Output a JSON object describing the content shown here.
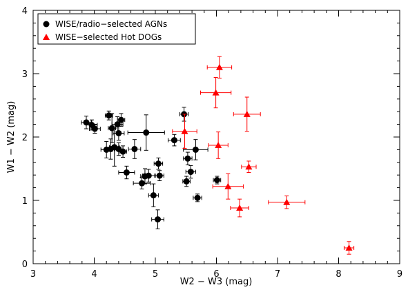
{
  "chart_data": {
    "type": "scatter",
    "title": "",
    "xlabel": "W2 − W3 (mag)",
    "ylabel": "W1 − W2 (mag)",
    "xlim": [
      3,
      9
    ],
    "ylim": [
      0,
      4
    ],
    "xticks": [
      "3",
      "4",
      "5",
      "6",
      "7",
      "8",
      "9"
    ],
    "yticks": [
      "0",
      "1",
      "2",
      "3",
      "4"
    ],
    "legend_position": "top-left",
    "series": [
      {
        "name": "WISE/radio−selected AGNs",
        "marker": "circle",
        "color": "#000000",
        "points": [
          {
            "x": 3.87,
            "y": 2.23,
            "xerr": 0.08,
            "yerr": 0.1
          },
          {
            "x": 3.96,
            "y": 2.19,
            "xerr": 0.09,
            "yerr": 0.08
          },
          {
            "x": 4.01,
            "y": 2.13,
            "xerr": 0.09,
            "yerr": 0.07
          },
          {
            "x": 4.24,
            "y": 2.34,
            "xerr": 0.06,
            "yerr": 0.07
          },
          {
            "x": 4.29,
            "y": 2.14,
            "xerr": 0.06,
            "yerr": 0.23
          },
          {
            "x": 4.38,
            "y": 2.2,
            "xerr": 0.09,
            "yerr": 0.12
          },
          {
            "x": 4.4,
            "y": 2.06,
            "xerr": 0.09,
            "yerr": 0.11
          },
          {
            "x": 4.44,
            "y": 2.27,
            "xerr": 0.06,
            "yerr": 0.1
          },
          {
            "x": 4.2,
            "y": 1.8,
            "xerr": 0.09,
            "yerr": 0.13
          },
          {
            "x": 4.27,
            "y": 1.81,
            "xerr": 0.07,
            "yerr": 0.16
          },
          {
            "x": 4.33,
            "y": 1.84,
            "xerr": 0.08,
            "yerr": 0.3
          },
          {
            "x": 4.4,
            "y": 1.81,
            "xerr": 0.07,
            "yerr": 0.1
          },
          {
            "x": 4.47,
            "y": 1.77,
            "xerr": 0.06,
            "yerr": 0.09
          },
          {
            "x": 4.66,
            "y": 1.81,
            "xerr": 0.1,
            "yerr": 0.15
          },
          {
            "x": 4.85,
            "y": 2.07,
            "xerr": 0.3,
            "yerr": 0.28
          },
          {
            "x": 4.53,
            "y": 1.44,
            "xerr": 0.13,
            "yerr": 0.1
          },
          {
            "x": 4.78,
            "y": 1.27,
            "xerr": 0.14,
            "yerr": 0.09
          },
          {
            "x": 4.83,
            "y": 1.38,
            "xerr": 0.07,
            "yerr": 0.12
          },
          {
            "x": 4.89,
            "y": 1.39,
            "xerr": 0.1,
            "yerr": 0.1
          },
          {
            "x": 4.97,
            "y": 1.08,
            "xerr": 0.08,
            "yerr": 0.18
          },
          {
            "x": 5.05,
            "y": 1.58,
            "xerr": 0.07,
            "yerr": 0.09
          },
          {
            "x": 5.07,
            "y": 1.39,
            "xerr": 0.07,
            "yerr": 0.08
          },
          {
            "x": 5.04,
            "y": 0.7,
            "xerr": 0.1,
            "yerr": 0.15
          },
          {
            "x": 5.31,
            "y": 1.95,
            "xerr": 0.1,
            "yerr": 0.09
          },
          {
            "x": 5.47,
            "y": 2.36,
            "xerr": 0.07,
            "yerr": 0.11
          },
          {
            "x": 5.51,
            "y": 1.3,
            "xerr": 0.06,
            "yerr": 0.08
          },
          {
            "x": 5.53,
            "y": 1.66,
            "xerr": 0.07,
            "yerr": 0.1
          },
          {
            "x": 5.58,
            "y": 1.45,
            "xerr": 0.08,
            "yerr": 0.1
          },
          {
            "x": 5.66,
            "y": 1.8,
            "xerr": 0.2,
            "yerr": 0.16
          },
          {
            "x": 5.69,
            "y": 1.04,
            "xerr": 0.07,
            "yerr": 0.06
          },
          {
            "x": 6.01,
            "y": 1.32,
            "xerr": 0.06,
            "yerr": 0.06
          }
        ]
      },
      {
        "name": "WISE−selected Hot DOGs",
        "marker": "triangle",
        "color": "#ff0000",
        "points": [
          {
            "x": 6.05,
            "y": 3.1,
            "xerr": 0.2,
            "yerr": 0.17
          },
          {
            "x": 5.99,
            "y": 2.7,
            "xerr": 0.25,
            "yerr": 0.24
          },
          {
            "x": 6.5,
            "y": 2.36,
            "xerr": 0.22,
            "yerr": 0.27
          },
          {
            "x": 5.48,
            "y": 2.09,
            "xerr": 0.2,
            "yerr": 0.27
          },
          {
            "x": 6.03,
            "y": 1.87,
            "xerr": 0.16,
            "yerr": 0.21
          },
          {
            "x": 6.53,
            "y": 1.53,
            "xerr": 0.12,
            "yerr": 0.09
          },
          {
            "x": 6.19,
            "y": 1.22,
            "xerr": 0.25,
            "yerr": 0.2
          },
          {
            "x": 6.38,
            "y": 0.88,
            "xerr": 0.15,
            "yerr": 0.14
          },
          {
            "x": 7.15,
            "y": 0.97,
            "xerr": 0.3,
            "yerr": 0.1
          },
          {
            "x": 8.17,
            "y": 0.25,
            "xerr": 0.08,
            "yerr": 0.1
          }
        ]
      }
    ]
  }
}
